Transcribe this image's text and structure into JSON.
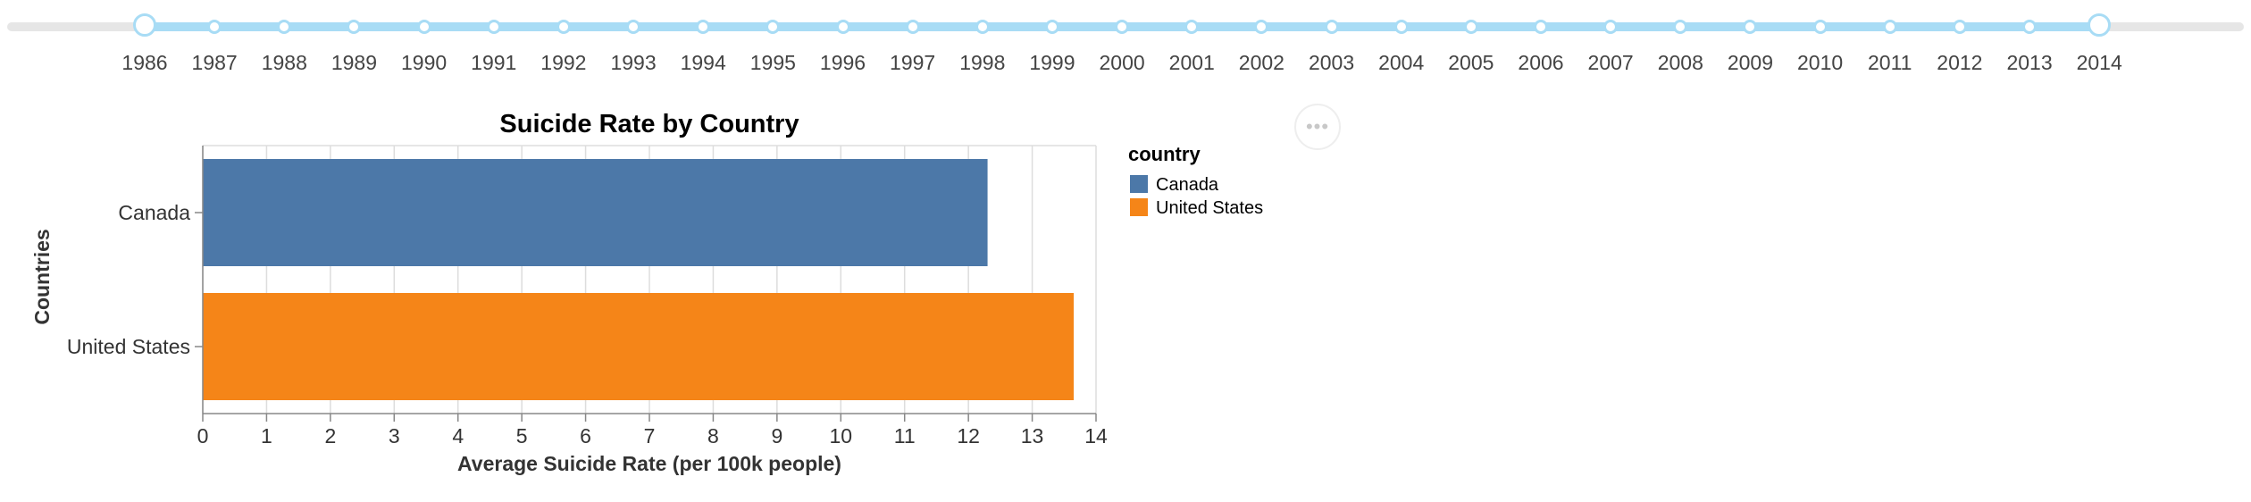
{
  "slider": {
    "years": [
      "1986",
      "1987",
      "1988",
      "1989",
      "1990",
      "1991",
      "1992",
      "1993",
      "1994",
      "1995",
      "1996",
      "1997",
      "1998",
      "1999",
      "2000",
      "2001",
      "2002",
      "2003",
      "2004",
      "2005",
      "2006",
      "2007",
      "2008",
      "2009",
      "2010",
      "2011",
      "2012",
      "2013",
      "2014"
    ],
    "selected_start": "1986",
    "selected_end": "2014",
    "accent_color": "#a8dcf5",
    "track_color": "#e6e6e6"
  },
  "menu": {
    "more_icon": "•••"
  },
  "chart_data": {
    "type": "bar",
    "orientation": "horizontal",
    "title": "Suicide Rate by Country",
    "xlabel": "Average Suicide Rate (per 100k people)",
    "ylabel": "Countries",
    "categories": [
      "Canada",
      "United States"
    ],
    "values": [
      12.3,
      13.65
    ],
    "colors": [
      "#4c78a8",
      "#f58518"
    ],
    "xlim": [
      0,
      14
    ],
    "xticks": [
      "0",
      "1",
      "2",
      "3",
      "4",
      "5",
      "6",
      "7",
      "8",
      "9",
      "10",
      "11",
      "12",
      "13",
      "14"
    ],
    "grid": true,
    "legend": {
      "title": "country",
      "position": "right",
      "entries": [
        {
          "label": "Canada",
          "color": "#4c78a8"
        },
        {
          "label": "United States",
          "color": "#f58518"
        }
      ]
    }
  }
}
